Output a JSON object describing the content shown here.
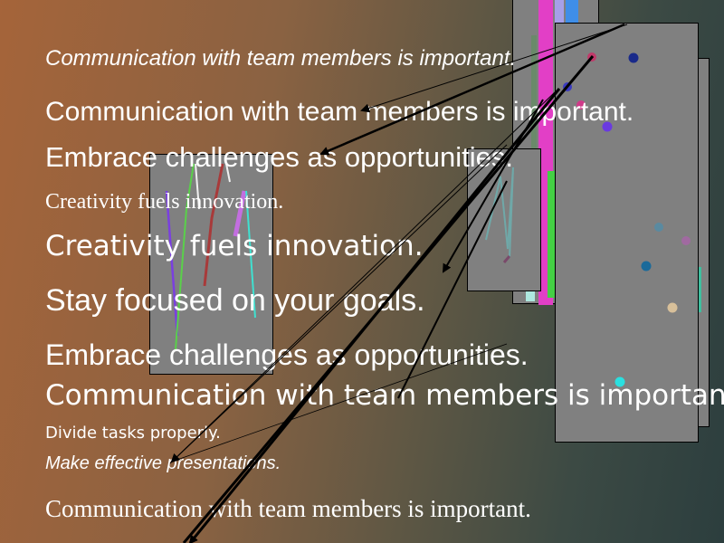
{
  "colors": {
    "background_left": "#a5643a",
    "background_right": "#2c3e3e",
    "panel_fill": "#808080",
    "text": "#ffffff"
  },
  "texts": {
    "line1": "Communication with team members is important.",
    "line2": "Communication with team members is important.",
    "line3": "Embrace challenges as opportunities.",
    "line4": "Creativity fuels innovation.",
    "line5": "Creativity fuels innovation.",
    "line6": "Stay focused on your goals.",
    "line7": "Embrace challenges as opportunities.",
    "line8": "Communication with team members is important.",
    "line9": "Divide tasks properly.",
    "line10": "Make effective presentations.",
    "line11": "Communication with team members is important."
  }
}
